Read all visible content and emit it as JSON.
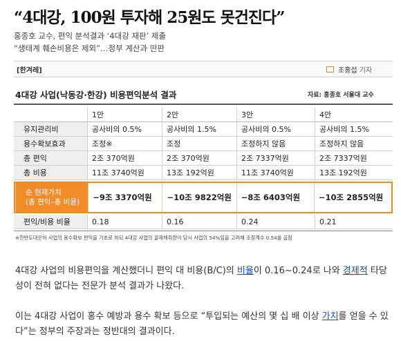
{
  "headline": "“4대강, 100원 투자해 25원도 못건진다”",
  "subheads": [
    "홍종호 교수, 편익 분석결과 ‘4대강 재판’ 제출",
    "“생태계 훼손비용은 제외”…정부 계산과 딴판"
  ],
  "byline": {
    "outlet": "[한겨레]",
    "reporter": "조홍섭",
    "role": "기자"
  },
  "table": {
    "title": "4대강 사업(낙동강·한강) 비용편익분석 결과",
    "source": "자료: 홍종호 서울대 교수",
    "header": [
      "",
      "1안",
      "2안",
      "3안",
      "4안"
    ],
    "rows": [
      {
        "label": "유지관리비",
        "cells": [
          "공사비의 0.5%",
          "공사비의 1.5%",
          "공사비의 0.5%",
          "공사비의 1.5%"
        ]
      },
      {
        "label": "용수확보효과",
        "cells": [
          "조정※",
          "조정",
          "조정하지 않음",
          "조정하지 않음"
        ]
      },
      {
        "label": "총 편익",
        "cells": [
          "2조 370억원",
          "2조 370억원",
          "2조 7337억원",
          "2조 7337억원"
        ]
      },
      {
        "label": "총 비용",
        "cells": [
          "11조 3740억원",
          "13조 192억원",
          "11조 3740억원",
          "13조 192억원"
        ]
      }
    ],
    "highlight": {
      "label_line1": "순 현재가치",
      "label_line2": "(총 편익–총 비용)",
      "cells": [
        "−9조 3370억원",
        "−10조 9822억원",
        "−8조 6403억원",
        "−10조 2855억원"
      ]
    },
    "last": {
      "label": "편익/비용 비율",
      "cells": [
        "0.18",
        "0.16",
        "0.24",
        "0.21"
      ]
    },
    "footnote": "※한반도대운하 사업의 용수확보 편익을 기초로 하되 4대강 사업의 골재채취량이 당시 사업의 54%임을 고려해 조정계수 0.54를 곱함"
  },
  "body": {
    "p1_a": "4대강 사업의 비용편익을 계산했더니 편익 대 비용(B/C)의 ",
    "p1_link1": "비율",
    "p1_b": "이 0.16~0.24로 나와 ",
    "p1_link2": "경제적",
    "p1_c": " 타당성이 전혀 없다는 전문가 분석 결과가 나왔다.",
    "p2_a": "이는 4대강 사업이 홍수 예방과 용수 확보 등으로 “투입되는 예산의 몇 십 배 이상 ",
    "p2_link": "가치",
    "p2_b": "를 얻을 수 있다”는 정부의 주장과는 정반대의 결과이다.",
    "link_color": "#1a4fb0"
  },
  "colors": {
    "highlight": "#f28c28"
  }
}
